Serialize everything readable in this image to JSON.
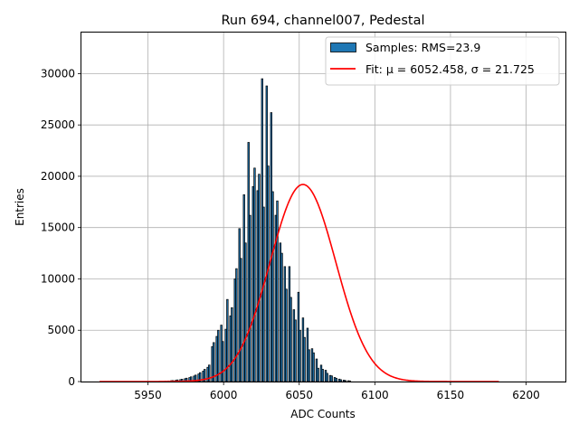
{
  "chart_data": {
    "type": "bar",
    "title": "Run 694, channel007, Pedestal",
    "xlabel": "ADC Counts",
    "ylabel": "Entries",
    "xlim": [
      5906,
      6226
    ],
    "ylim": [
      0,
      34000
    ],
    "xticks": [
      5950,
      6000,
      6050,
      6100,
      6150,
      6200
    ],
    "yticks": [
      0,
      5000,
      10000,
      15000,
      20000,
      25000,
      30000
    ],
    "grid": true,
    "legend_position": "top-right",
    "bar_color": "#1f77b4",
    "bar_edge_color": "#000000",
    "fit_color": "#ff0000",
    "histogram": {
      "name": "Samples: RMS=23.9",
      "bin_start": 5961,
      "bin_width": 1,
      "counts": [
        40,
        0,
        60,
        0,
        90,
        100,
        0,
        130,
        160,
        0,
        190,
        230,
        0,
        280,
        330,
        0,
        390,
        460,
        0,
        540,
        630,
        0,
        740,
        870,
        0,
        1020,
        1190,
        0,
        1390,
        1610,
        0,
        3400,
        3800,
        0,
        4400,
        5000,
        0,
        5500,
        3900,
        0,
        5100,
        8000,
        0,
        6400,
        7200,
        0,
        10000,
        11000,
        0,
        14900,
        12000,
        0,
        18200,
        13500,
        0,
        23300,
        16200,
        0,
        19000,
        20800,
        0,
        18600,
        20200,
        0,
        29500,
        17000,
        0,
        28800,
        21000,
        0,
        26200,
        18500,
        0,
        16200,
        17600,
        0,
        13500,
        12500,
        0,
        11200,
        9000,
        0,
        11200,
        8200,
        0,
        7000,
        6000,
        0,
        8700,
        5000,
        0,
        6200,
        4300,
        0,
        5200,
        3100,
        0,
        3200,
        2800,
        0,
        2200,
        1300,
        0,
        1600,
        1200,
        0,
        1100,
        800,
        0,
        600,
        550,
        0,
        400,
        320,
        0,
        240,
        180,
        0,
        140,
        100,
        0,
        80,
        60
      ]
    },
    "fit": {
      "name": "Fit: μ = 6052.458, σ = 21.725",
      "type": "gaussian",
      "mu": 6052.458,
      "sigma": 21.725,
      "amplitude": 19200,
      "x_range": [
        5918,
        6182
      ]
    }
  }
}
